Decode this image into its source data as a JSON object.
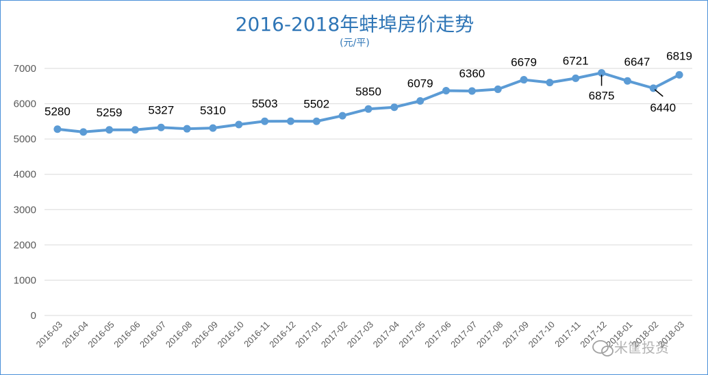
{
  "chart_data": {
    "type": "line",
    "title": "2016-2018年蚌埠房价走势",
    "subtitle": "(元/平)",
    "xlabel": "",
    "ylabel": "",
    "ylim": [
      0,
      7000
    ],
    "yticks": [
      0,
      1000,
      2000,
      3000,
      4000,
      5000,
      6000,
      7000
    ],
    "grid": true,
    "legend": "none",
    "categories": [
      "2016-03",
      "2016-04",
      "2016-05",
      "2016-06",
      "2016-07",
      "2016-08",
      "2016-09",
      "2016-10",
      "2016-11",
      "2016-12",
      "2017-01",
      "2017-02",
      "2017-03",
      "2017-04",
      "2017-05",
      "2017-06",
      "2017-07",
      "2017-08",
      "2017-09",
      "2017-10",
      "2017-11",
      "2017-12",
      "2018-01",
      "2018-02",
      "2018-03"
    ],
    "series": [
      {
        "color": "#5b9bd5",
        "values": [
          5280,
          5200,
          5259,
          5260,
          5327,
          5290,
          5310,
          5410,
          5503,
          5505,
          5502,
          5660,
          5850,
          5900,
          6079,
          6370,
          6360,
          6410,
          6679,
          6600,
          6721,
          6875,
          6647,
          6440,
          6819
        ]
      }
    ],
    "data_labels": [
      {
        "index": 0,
        "text": "5280"
      },
      {
        "index": 2,
        "text": "5259"
      },
      {
        "index": 4,
        "text": "5327"
      },
      {
        "index": 6,
        "text": "5310"
      },
      {
        "index": 8,
        "text": "5503"
      },
      {
        "index": 10,
        "text": "5502"
      },
      {
        "index": 12,
        "text": "5850"
      },
      {
        "index": 14,
        "text": "6079"
      },
      {
        "index": 16,
        "text": "6360"
      },
      {
        "index": 18,
        "text": "6679"
      },
      {
        "index": 20,
        "text": "6721"
      },
      {
        "index": 21,
        "text": "6875"
      },
      {
        "index": 22,
        "text": "6647"
      },
      {
        "index": 23,
        "text": "6440"
      },
      {
        "index": 24,
        "text": "6819"
      }
    ]
  },
  "watermark": {
    "text": "米筐投资",
    "icon": "wechat-icon"
  }
}
